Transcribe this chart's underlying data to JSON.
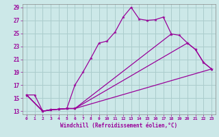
{
  "xlabel": "Windchill (Refroidissement éolien,°C)",
  "background_color": "#cce8e8",
  "grid_color": "#aacccc",
  "line_color": "#990099",
  "xlim": [
    -0.5,
    23.5
  ],
  "ylim": [
    12.5,
    29.5
  ],
  "yticks": [
    13,
    15,
    17,
    19,
    21,
    23,
    25,
    27,
    29
  ],
  "xticks": [
    0,
    1,
    2,
    3,
    4,
    5,
    6,
    7,
    8,
    9,
    10,
    11,
    12,
    13,
    14,
    15,
    16,
    17,
    18,
    19,
    20,
    21,
    22,
    23
  ],
  "line1_x": [
    0,
    1,
    2,
    3,
    4,
    5,
    6,
    7,
    8,
    9,
    10,
    11,
    12,
    13,
    14,
    15,
    16,
    17,
    18
  ],
  "line1_y": [
    15.5,
    15.5,
    13.0,
    13.2,
    13.3,
    13.4,
    17.0,
    19.0,
    21.2,
    23.5,
    23.8,
    25.2,
    27.5,
    29.0,
    27.2,
    27.0,
    27.1,
    27.5,
    24.9
  ],
  "line2_x": [
    0,
    2,
    3,
    4,
    5,
    6,
    23
  ],
  "line2_y": [
    15.5,
    13.0,
    13.2,
    13.3,
    13.4,
    13.4,
    19.5
  ],
  "line3_x": [
    0,
    2,
    3,
    4,
    5,
    6,
    20,
    21,
    22,
    23
  ],
  "line3_y": [
    15.5,
    13.0,
    13.2,
    13.3,
    13.4,
    13.4,
    23.5,
    22.5,
    20.5,
    19.5
  ],
  "line4_x": [
    0,
    2,
    3,
    4,
    5,
    6,
    18,
    19,
    20,
    21,
    22,
    23
  ],
  "line4_y": [
    15.5,
    13.0,
    13.2,
    13.3,
    13.4,
    13.4,
    24.9,
    24.7,
    23.5,
    22.5,
    20.5,
    19.5
  ]
}
